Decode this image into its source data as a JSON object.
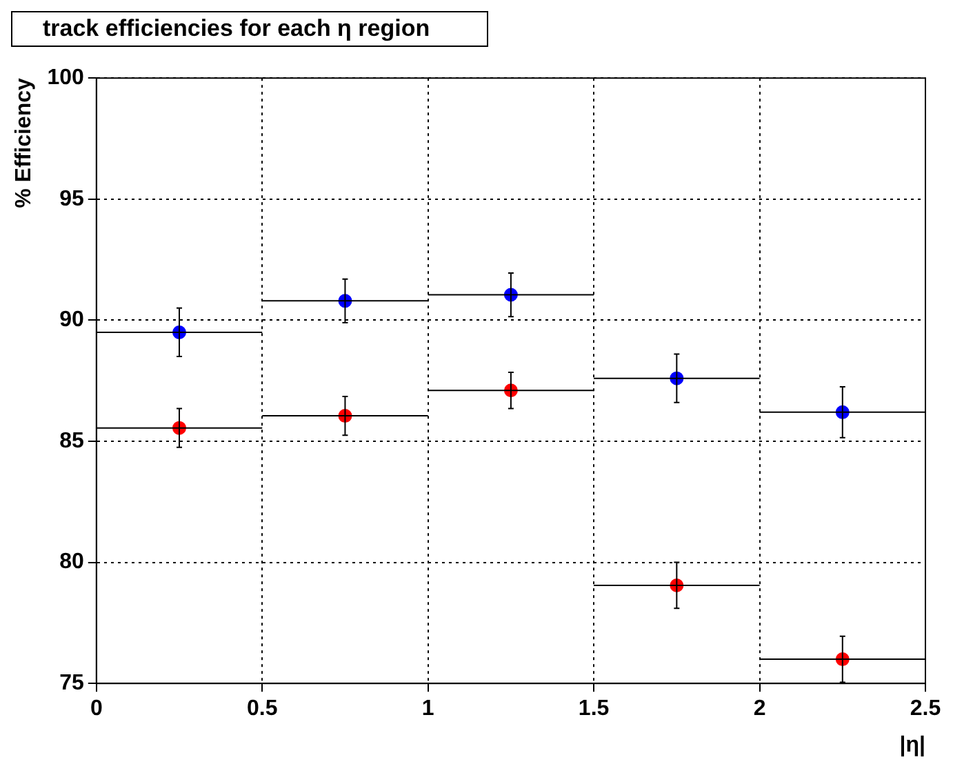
{
  "chart_data": {
    "type": "scatter",
    "title": "track efficiencies for each η region",
    "xlabel": "|η|",
    "ylabel": "% Efficiency",
    "x": [
      0.25,
      0.75,
      1.25,
      1.75,
      2.25
    ],
    "series": [
      {
        "color": "#0000ff",
        "values": [
          89.5,
          90.8,
          91.05,
          87.6,
          86.2
        ],
        "errors": [
          1.0,
          0.9,
          0.9,
          1.0,
          1.05
        ],
        "xerrors": [
          0.25,
          0.25,
          0.25,
          0.25,
          0.25
        ]
      },
      {
        "color": "#ff0000",
        "values": [
          85.55,
          86.05,
          87.1,
          79.05,
          76.0
        ],
        "errors": [
          0.8,
          0.8,
          0.75,
          0.95,
          0.95
        ],
        "xerrors": [
          0.25,
          0.25,
          0.25,
          0.25,
          0.25
        ]
      }
    ],
    "xlim": [
      0,
      2.5
    ],
    "xticks": [
      0,
      0.5,
      1,
      1.5,
      2,
      2.5
    ],
    "ylim": [
      75,
      100
    ],
    "yticks": [
      75,
      80,
      85,
      90,
      95,
      100
    ],
    "grid": true,
    "marker": "circle",
    "legend": false
  }
}
